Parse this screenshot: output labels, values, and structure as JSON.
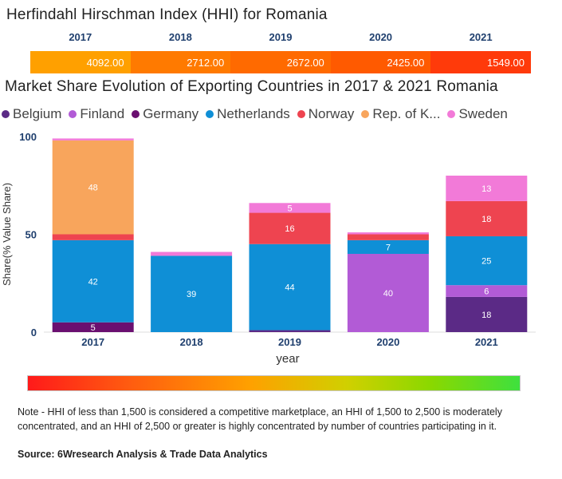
{
  "hhi": {
    "title": "Herfindahl Hirschman Index (HHI) for Romania",
    "cells": [
      {
        "year": "2017",
        "value": "4092.00",
        "color": "#ffa000"
      },
      {
        "year": "2018",
        "value": "2712.00",
        "color": "#ff7a00"
      },
      {
        "year": "2019",
        "value": "2672.00",
        "color": "#ff6a00"
      },
      {
        "year": "2020",
        "value": "2425.00",
        "color": "#ff5a00"
      },
      {
        "year": "2021",
        "value": "1549.00",
        "color": "#ff3a0a"
      }
    ]
  },
  "chart_title": "Market Share Evolution of Exporting Countries in 2017 & 2021 Romania",
  "legend": [
    {
      "name": "Belgium",
      "color": "#5b2a86"
    },
    {
      "name": "Finland",
      "color": "#b25bd6"
    },
    {
      "name": "Germany",
      "color": "#6a0f70"
    },
    {
      "name": "Netherlands",
      "color": "#0f8fd6"
    },
    {
      "name": "Norway",
      "color": "#ee4450"
    },
    {
      "name": "Rep. of K...",
      "color": "#f8a55c"
    },
    {
      "name": "Sweden",
      "color": "#f27ad8"
    }
  ],
  "chart_data": {
    "type": "bar",
    "stacked": true,
    "title": "Market Share Evolution of Exporting Countries in 2017 & 2021 Romania",
    "xlabel": "year",
    "ylabel": "Share(% Value Share)",
    "ylim": [
      0,
      100
    ],
    "yticks": [
      "0",
      "50",
      "100"
    ],
    "categories": [
      "2017",
      "2018",
      "2019",
      "2020",
      "2021"
    ],
    "series": [
      {
        "name": "Germany",
        "color": "#6a0f70",
        "values": [
          5,
          0,
          0,
          0,
          0
        ],
        "labels": [
          "5",
          "",
          "",
          "",
          ""
        ]
      },
      {
        "name": "Belgium",
        "color": "#5b2a86",
        "values": [
          0,
          0,
          1,
          0,
          18
        ],
        "labels": [
          "",
          "",
          "",
          "",
          "18"
        ]
      },
      {
        "name": "Finland",
        "color": "#b25bd6",
        "values": [
          0,
          0,
          0,
          40,
          6
        ],
        "labels": [
          "",
          "",
          "",
          "40",
          "6"
        ]
      },
      {
        "name": "Netherlands",
        "color": "#0f8fd6",
        "values": [
          42,
          39,
          44,
          7,
          25
        ],
        "labels": [
          "42",
          "39",
          "44",
          "7",
          "25"
        ]
      },
      {
        "name": "Norway",
        "color": "#ee4450",
        "values": [
          3,
          0,
          16,
          3,
          18
        ],
        "labels": [
          "",
          "",
          "16",
          "",
          "18"
        ]
      },
      {
        "name": "Rep. of K...",
        "color": "#f8a55c",
        "values": [
          48,
          0,
          0,
          0,
          0
        ],
        "labels": [
          "48",
          "",
          "",
          "",
          ""
        ]
      },
      {
        "name": "Sweden",
        "color": "#f27ad8",
        "values": [
          1,
          2,
          5,
          1,
          13
        ],
        "labels": [
          "",
          "",
          "5",
          "",
          "13"
        ]
      }
    ]
  },
  "note": "Note - HHI of less than 1,500 is considered a competitive marketplace, an HHI of 1,500 to 2,500 is moderately concentrated, and an HHI of 2,500 or greater is highly concentrated by number of countries participating in it.",
  "source": "Source: 6Wresearch Analysis & Trade Data Analytics"
}
